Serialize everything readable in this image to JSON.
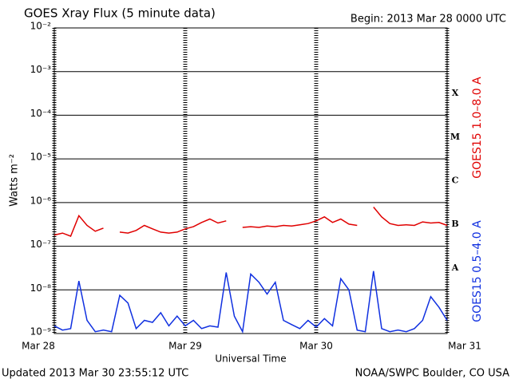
{
  "chart_data": {
    "type": "line",
    "title": "GOES Xray Flux (5 minute data)",
    "subtitle": "Begin:  2013 Mar 28 0000 UTC",
    "ylabel": "Watts m⁻²",
    "xlabel": "Universal Time",
    "footer_left": "Updated 2013 Mar 30 23:55:12 UTC",
    "footer_right": "NOAA/SWPC Boulder, CO USA",
    "ylog": true,
    "grid": true,
    "xlim": [
      0,
      3
    ],
    "xticks": [
      {
        "value": 0,
        "label": "Mar 28"
      },
      {
        "value": 1,
        "label": "Mar 29"
      },
      {
        "value": 2,
        "label": "Mar 30"
      },
      {
        "value": 3,
        "label": "Mar 31"
      }
    ],
    "ylim": [
      1e-09,
      0.01
    ],
    "yticks": [
      {
        "value": 0.01,
        "label": "10⁻²"
      },
      {
        "value": 0.001,
        "label": "10⁻³"
      },
      {
        "value": 0.0001,
        "label": "10⁻⁴"
      },
      {
        "value": 1e-05,
        "label": "10⁻⁵"
      },
      {
        "value": 1e-06,
        "label": "10⁻⁶"
      },
      {
        "value": 1e-07,
        "label": "10⁻⁷"
      },
      {
        "value": 1e-08,
        "label": "10⁻⁸"
      },
      {
        "value": 1e-09,
        "label": "10⁻⁹"
      }
    ],
    "flare_classes": [
      {
        "label": "X",
        "value": 0.0001
      },
      {
        "label": "M",
        "value": 1e-05
      },
      {
        "label": "C",
        "value": 1e-06
      },
      {
        "label": "B",
        "value": 1e-07
      },
      {
        "label": "A",
        "value": 1e-08
      }
    ],
    "x": [
      0,
      0.0625,
      0.125,
      0.1875,
      0.25,
      0.3125,
      0.375,
      0.4375,
      0.5,
      0.5625,
      0.625,
      0.6875,
      0.75,
      0.8125,
      0.875,
      0.9375,
      1,
      1.0625,
      1.125,
      1.1875,
      1.25,
      1.3125,
      1.375,
      1.4375,
      1.5,
      1.5625,
      1.625,
      1.6875,
      1.75,
      1.8125,
      1.875,
      1.9375,
      2,
      2.0625,
      2.125,
      2.1875,
      2.25,
      2.3125,
      2.375,
      2.4375,
      2.5,
      2.5625,
      2.625,
      2.6875,
      2.75,
      2.8125,
      2.875,
      2.9375,
      3
    ],
    "series": [
      {
        "name": "GOES15 1.0–8.0 A",
        "color": "#e00000",
        "values": [
          1.8e-07,
          2e-07,
          1.7e-07,
          5e-07,
          3e-07,
          2.2e-07,
          2.6e-07,
          null,
          2.1e-07,
          2e-07,
          2.3e-07,
          3e-07,
          2.5e-07,
          2.1e-07,
          2e-07,
          2.1e-07,
          2.5e-07,
          2.8e-07,
          3.5e-07,
          4.2e-07,
          3.4e-07,
          3.8e-07,
          null,
          2.7e-07,
          2.8e-07,
          2.7e-07,
          2.9e-07,
          2.8e-07,
          3e-07,
          2.9e-07,
          3.1e-07,
          3.3e-07,
          3.8e-07,
          4.7e-07,
          3.5e-07,
          4.2e-07,
          3.2e-07,
          3e-07,
          null,
          7.9e-07,
          4.7e-07,
          3.3e-07,
          3e-07,
          3.1e-07,
          3e-07,
          3.6e-07,
          3.4e-07,
          3.5e-07,
          3e-07
        ]
      },
      {
        "name": "GOES15 0.5–4.0 A",
        "color": "#1030e0",
        "values": [
          1.5e-09,
          1.2e-09,
          1.3e-09,
          1.6e-08,
          2e-09,
          1.1e-09,
          1.2e-09,
          1.1e-09,
          7.5e-09,
          5e-09,
          1.3e-09,
          2e-09,
          1.8e-09,
          3e-09,
          1.5e-09,
          2.5e-09,
          1.5e-09,
          2e-09,
          1.3e-09,
          1.5e-09,
          1.4e-09,
          2.5e-08,
          2.5e-09,
          1.1e-09,
          2.3e-08,
          1.5e-08,
          8e-09,
          1.5e-08,
          2e-09,
          1.6e-09,
          1.3e-09,
          2e-09,
          1.4e-09,
          2.2e-09,
          1.5e-09,
          1.8e-08,
          1e-08,
          1.2e-09,
          1.1e-09,
          2.7e-08,
          1.3e-09,
          1.1e-09,
          1.2e-09,
          1.1e-09,
          1.3e-09,
          2e-09,
          7e-09,
          4e-09,
          2e-09
        ]
      }
    ]
  }
}
